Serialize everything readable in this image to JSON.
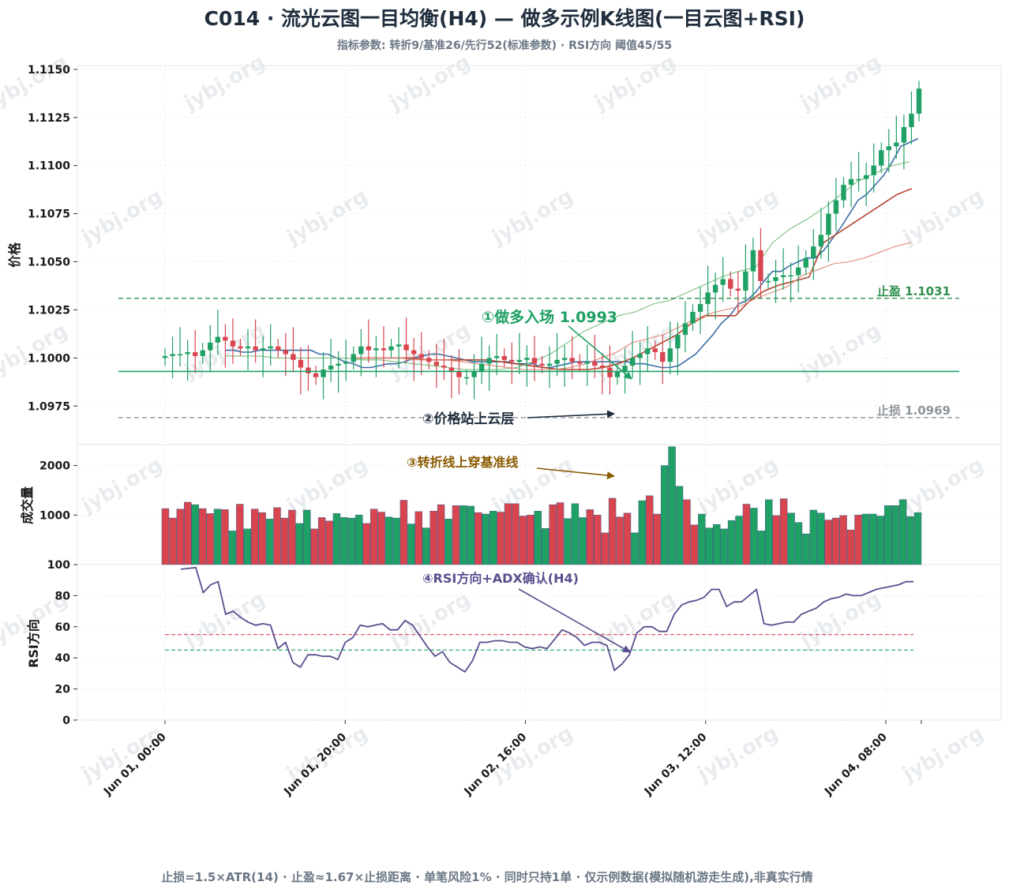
{
  "title": "C014 · 流光云图一目均衡(H4) — 做多示例K线图(一目云图+RSI)",
  "subtitle": "指标参数: 转折9/基准26/先行52(标准参数) · RSI方向 阈值45/55",
  "footer": "止损=1.5×ATR(14) · 止盈≈1.67×止损距离 · 单笔风险1% · 同时只持1单 · 仅示例数据(模拟随机游走生成),非真实行情",
  "watermark": "jybj.org",
  "colors": {
    "up": "#1fa064",
    "down": "#d9454f",
    "tenkan": "#3a6ea8",
    "kijun": "#b5452c",
    "spanA": "#7cbf7f",
    "spanB": "#e08a7a",
    "rsi": "#5a4e8f",
    "entry": "#1fa064",
    "tp": "#2f8f4f",
    "sl": "#8f959c",
    "ann3": "#8a5a00",
    "ann4": "#5a4e8f",
    "ann2": "#1f2d3d"
  },
  "chart_data": [
    {
      "type": "candlestick",
      "panel": "price",
      "ylabel": "价格",
      "ylim": [
        1.0955,
        1.1152
      ],
      "yticks": [
        "1.0975",
        "1.1000",
        "1.1025",
        "1.1050",
        "1.1075",
        "1.1100",
        "1.1125",
        "1.1150"
      ],
      "x_start": "Jun 01, 00:00",
      "bar_interval_hours": 4,
      "xticks": [
        "Jun 01, 00:00",
        "Jun 01, 20:00",
        "Jun 02, 16:00",
        "Jun 03, 12:00",
        "Jun 04, 08:00"
      ],
      "xtick_bar_index": [
        0,
        5,
        10,
        15,
        20
      ],
      "close": [
        1.1001,
        1.1002,
        1.1002,
        1.1003,
        1.1001,
        1.1004,
        1.1008,
        1.1011,
        1.1009,
        1.1006,
        1.1005,
        1.1006,
        1.1004,
        1.1005,
        1.1006,
        1.1004,
        1.1002,
        1.0999,
        1.0995,
        1.0992,
        1.099,
        1.0994,
        1.0996,
        1.0997,
        1.0998,
        1.1002,
        1.1006,
        1.1004,
        1.1005,
        1.1004,
        1.1006,
        1.1007,
        1.1004,
        1.1002,
        1.1,
        1.0998,
        1.0996,
        1.0995,
        1.0993,
        1.099,
        1.099,
        1.0993,
        1.0997,
        1.1,
        1.1001,
        1.0999,
        1.0998,
        1.0999,
        1.1,
        1.0997,
        1.0996,
        1.0997,
        1.0999,
        1.1,
        1.0998,
        1.0997,
        1.0998,
        1.0996,
        1.0995,
        1.099,
        1.0993,
        1.0996,
        1.1,
        1.1002,
        1.1005,
        1.1003,
        1.0998,
        1.1005,
        1.1012,
        1.1018,
        1.1024,
        1.1028,
        1.1034,
        1.1038,
        1.1041,
        1.1036,
        1.1035,
        1.1045,
        1.1056,
        1.104,
        1.104,
        1.1042,
        1.1043,
        1.1043,
        1.1047,
        1.1052,
        1.1058,
        1.1064,
        1.1075,
        1.1082,
        1.109,
        1.1093,
        1.1093,
        1.1095,
        1.11,
        1.1108,
        1.111,
        1.1112,
        1.112,
        1.1127,
        1.114
      ],
      "series": [
        {
          "name": "",
          "kind": "tenkan",
          "values": [
            1.1004,
            1.1004,
            1.1003,
            1.1003,
            1.1004,
            1.1004,
            1.1004,
            1.1004,
            1.1004,
            1.1004,
            1.1004,
            1.1002,
            1.1002,
            1.1,
            1.0998,
            1.0997,
            1.0995,
            1.0995,
            1.0996,
            1.0997,
            1.0997,
            1.0998,
            1.1,
            1.1001,
            1.1002,
            1.1002,
            1.1001,
            1.1,
            1.0999,
            1.0998,
            1.0998,
            1.0998,
            1.0998,
            1.0998,
            1.0997,
            1.0997,
            1.0997,
            1.0995,
            1.0995,
            1.0996,
            1.0997,
            1.0998,
            1.0998,
            1.0998,
            1.0998,
            1.0998,
            1.0998,
            1.0998,
            1.0997,
            1.0997,
            1.0996,
            1.0995,
            1.0995,
            1.0996,
            1.0999,
            1.1002,
            1.1007,
            1.1012,
            1.1018,
            1.1022,
            1.1028,
            1.103,
            1.1034,
            1.104,
            1.1045,
            1.1045,
            1.1048,
            1.105,
            1.1052,
            1.1052,
            1.1056,
            1.1062,
            1.1068,
            1.1075,
            1.1082,
            1.1085,
            1.109,
            1.1095,
            1.1102,
            1.111,
            1.1112,
            1.1114
          ]
        },
        {
          "name": "",
          "kind": "kijun",
          "values": [
            1.1,
            1.1,
            1.1,
            1.1,
            1.1,
            1.0999,
            1.0999,
            1.0999,
            1.0999,
            1.0999,
            1.0998,
            1.0997,
            1.0996,
            1.0995,
            1.0994,
            1.0994,
            1.0994,
            1.0995,
            1.0997,
            1.1,
            1.1004,
            1.1008,
            1.1012,
            1.1018,
            1.1022,
            1.1022,
            1.1022,
            1.103,
            1.1035,
            1.1038,
            1.104,
            1.1042,
            1.106,
            1.1065,
            1.107,
            1.1075,
            1.108,
            1.1085,
            1.1088
          ]
        },
        {
          "name": "",
          "kind": "spanA",
          "values": [
            1.1001,
            1.1001,
            1.1001,
            1.1,
            1.1,
            1.1,
            1.1,
            1.1,
            1.0999,
            1.0999,
            1.0998,
            1.0997,
            1.0996,
            1.0995,
            1.0994,
            1.0994,
            1.0994,
            1.0995,
            1.0998,
            1.1002,
            1.1008,
            1.1014,
            1.1018,
            1.1022,
            1.1024,
            1.1028,
            1.103,
            1.1034,
            1.1038,
            1.1042,
            1.1045,
            1.1047,
            1.106,
            1.1067,
            1.1072,
            1.1078,
            1.1085,
            1.1092,
            1.1096,
            1.11,
            1.1102
          ]
        },
        {
          "name": "",
          "kind": "spanB",
          "values": [
            1.1,
            1.1,
            1.1,
            1.1,
            1.0999,
            1.0999,
            1.0999,
            1.0998,
            1.0997,
            1.0996,
            1.0995,
            1.0994,
            1.0994,
            1.0994,
            1.0995,
            1.0997,
            1.1,
            1.1003,
            1.1008,
            1.101,
            1.1012,
            1.1016,
            1.102,
            1.1023,
            1.1025,
            1.1027,
            1.1031,
            1.1034,
            1.1037,
            1.1043,
            1.1046,
            1.1049,
            1.105,
            1.1052,
            1.1055,
            1.1058,
            1.106
          ]
        }
      ],
      "levels": [
        {
          "name": "止盈",
          "value": 1.1031,
          "label": "止盈 1.1031"
        },
        {
          "name": "入场",
          "value": 1.0993,
          "label": "①做多入场 1.0993"
        },
        {
          "name": "止损",
          "value": 1.0969,
          "label": "止损 1.0969"
        }
      ],
      "annotations": [
        "①做多入场 1.0993",
        "②价格站上云层"
      ]
    },
    {
      "type": "bar",
      "panel": "volume",
      "ylabel": "成交量",
      "yticks": [
        "1000",
        "2000"
      ],
      "values": [
        1130,
        940,
        1120,
        1260,
        1210,
        1130,
        1030,
        1120,
        1110,
        680,
        1220,
        720,
        1120,
        1050,
        920,
        1150,
        940,
        1100,
        830,
        1100,
        720,
        950,
        880,
        1030,
        950,
        940,
        1000,
        830,
        1120,
        1060,
        960,
        940,
        1300,
        820,
        1070,
        740,
        1080,
        1210,
        920,
        1190,
        1190,
        1180,
        1050,
        1020,
        1080,
        1060,
        1230,
        1230,
        980,
        1000,
        1080,
        730,
        1210,
        1250,
        930,
        1230,
        950,
        1110,
        1000,
        640,
        1340,
        960,
        1040,
        640,
        1290,
        1390,
        1020,
        2000,
        2380,
        1580,
        1310,
        800,
        1020,
        740,
        810,
        720,
        890,
        980,
        1220,
        1140,
        680,
        1310,
        990,
        1330,
        1040,
        850,
        620,
        1100,
        1040,
        900,
        940,
        990,
        700,
        1000,
        1020,
        1020,
        980,
        1190,
        1190,
        1310,
        970,
        1050
      ],
      "bar_up": [
        false,
        false,
        false,
        false,
        true,
        false,
        false,
        true,
        false,
        true,
        false,
        true,
        false,
        false,
        true,
        false,
        false,
        false,
        true,
        true,
        false,
        false,
        false,
        true,
        true,
        true,
        true,
        false,
        false,
        false,
        true,
        true,
        false,
        true,
        false,
        true,
        false,
        false,
        true,
        false,
        true,
        true,
        false,
        true,
        true,
        false,
        false,
        false,
        false,
        false,
        true,
        true,
        false,
        false,
        true,
        true,
        true,
        false,
        false,
        false,
        false,
        false,
        false,
        true,
        true,
        false,
        false,
        true,
        true,
        true,
        false,
        false,
        true,
        true,
        true,
        true,
        true,
        true,
        false,
        true,
        true,
        true,
        false,
        false,
        true,
        true,
        true,
        true,
        true,
        false,
        false,
        false,
        false,
        false,
        true,
        true,
        true,
        true,
        true,
        true,
        true,
        true
      ],
      "annotations": [
        "③转折线上穿基准线"
      ]
    },
    {
      "type": "line",
      "panel": "rsi",
      "ylabel": "RSI方向",
      "ylim": [
        0,
        100
      ],
      "yticks": [
        "0",
        "20",
        "40",
        "60",
        "80",
        "100"
      ],
      "values": [
        97,
        97.5,
        98,
        82,
        87,
        89,
        68,
        70,
        66,
        63,
        61,
        62,
        61,
        46,
        50,
        37,
        34,
        42,
        42,
        41,
        41,
        39,
        50,
        53,
        61,
        60,
        61,
        62,
        58,
        58,
        64,
        61,
        54,
        47,
        41,
        44,
        37,
        34,
        31,
        38,
        50,
        50,
        51,
        51,
        50,
        50,
        47,
        46,
        47,
        46,
        52,
        58,
        56,
        53,
        48,
        50,
        50,
        48,
        32,
        36,
        42,
        56,
        60,
        60,
        57,
        57,
        68,
        74,
        76,
        77,
        79,
        84,
        84,
        73,
        76,
        76,
        80,
        84,
        62,
        61,
        62,
        63,
        63,
        68,
        70,
        72,
        76,
        78,
        79,
        81,
        80,
        80,
        82,
        84,
        85,
        86,
        87,
        89,
        89
      ],
      "thresholds": [
        45,
        55
      ],
      "annotations": [
        "④RSI方向+ADX确认(H4)"
      ]
    }
  ]
}
